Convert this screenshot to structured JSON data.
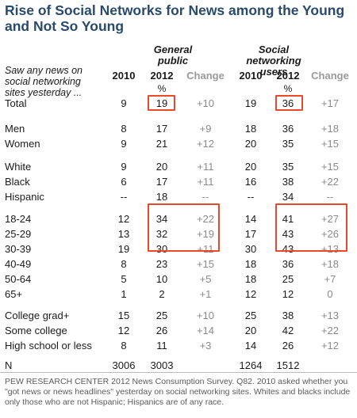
{
  "title": "Rise of Social Networks for News among the Young and Not So Young",
  "question": "Saw any news on social networking sites yesterday ...",
  "groups": {
    "general": "General public",
    "social": "Social networking users"
  },
  "columns": {
    "y2010": "2010",
    "y2012": "2012",
    "change": "Change",
    "pct": "%"
  },
  "rows": [
    {
      "label": "Total",
      "g10": "9",
      "g12": "19",
      "gch": "+10",
      "s10": "19",
      "s12": "36",
      "sch": "+17"
    },
    {
      "label": "Men",
      "g10": "8",
      "g12": "17",
      "gch": "+9",
      "s10": "18",
      "s12": "36",
      "sch": "+18"
    },
    {
      "label": "Women",
      "g10": "9",
      "g12": "21",
      "gch": "+12",
      "s10": "20",
      "s12": "35",
      "sch": "+15"
    },
    {
      "label": "White",
      "g10": "9",
      "g12": "20",
      "gch": "+11",
      "s10": "20",
      "s12": "35",
      "sch": "+15"
    },
    {
      "label": "Black",
      "g10": "6",
      "g12": "17",
      "gch": "+11",
      "s10": "16",
      "s12": "38",
      "sch": "+22"
    },
    {
      "label": "Hispanic",
      "g10": "--",
      "g12": "18",
      "gch": "--",
      "s10": "--",
      "s12": "34",
      "sch": "--"
    },
    {
      "label": "18-24",
      "g10": "12",
      "g12": "34",
      "gch": "+22",
      "s10": "14",
      "s12": "41",
      "sch": "+27"
    },
    {
      "label": "25-29",
      "g10": "13",
      "g12": "32",
      "gch": "+19",
      "s10": "17",
      "s12": "43",
      "sch": "+26"
    },
    {
      "label": "30-39",
      "g10": "19",
      "g12": "30",
      "gch": "+11",
      "s10": "30",
      "s12": "43",
      "sch": "+13"
    },
    {
      "label": "40-49",
      "g10": "8",
      "g12": "23",
      "gch": "+15",
      "s10": "18",
      "s12": "36",
      "sch": "+18"
    },
    {
      "label": "50-64",
      "g10": "5",
      "g12": "10",
      "gch": "+5",
      "s10": "18",
      "s12": "25",
      "sch": "+7"
    },
    {
      "label": "65+",
      "g10": "1",
      "g12": "2",
      "gch": "+1",
      "s10": "12",
      "s12": "12",
      "sch": "0"
    },
    {
      "label": "College grad+",
      "g10": "15",
      "g12": "25",
      "gch": "+10",
      "s10": "25",
      "s12": "38",
      "sch": "+13"
    },
    {
      "label": "Some college",
      "g10": "12",
      "g12": "26",
      "gch": "+14",
      "s10": "20",
      "s12": "42",
      "sch": "+22"
    },
    {
      "label": "High school or less",
      "g10": "8",
      "g12": "11",
      "gch": "+3",
      "s10": "14",
      "s12": "26",
      "sch": "+12"
    },
    {
      "label": "N",
      "g10": "3006",
      "g12": "3003",
      "gch": "",
      "s10": "1264",
      "s12": "1512",
      "sch": ""
    }
  ],
  "source": "PEW RESEARCH CENTER 2012 News Consumption Survey. Q82. 2010 asked whether you \"got news or news headlines\" yesterday on social networking sites. Whites and blacks include only those who are not Hispanic; Hispanics are of any race.",
  "colors": {
    "title": "#2a4a6b",
    "highlight": "#e8492a",
    "change_text": "#8a8a8a"
  }
}
